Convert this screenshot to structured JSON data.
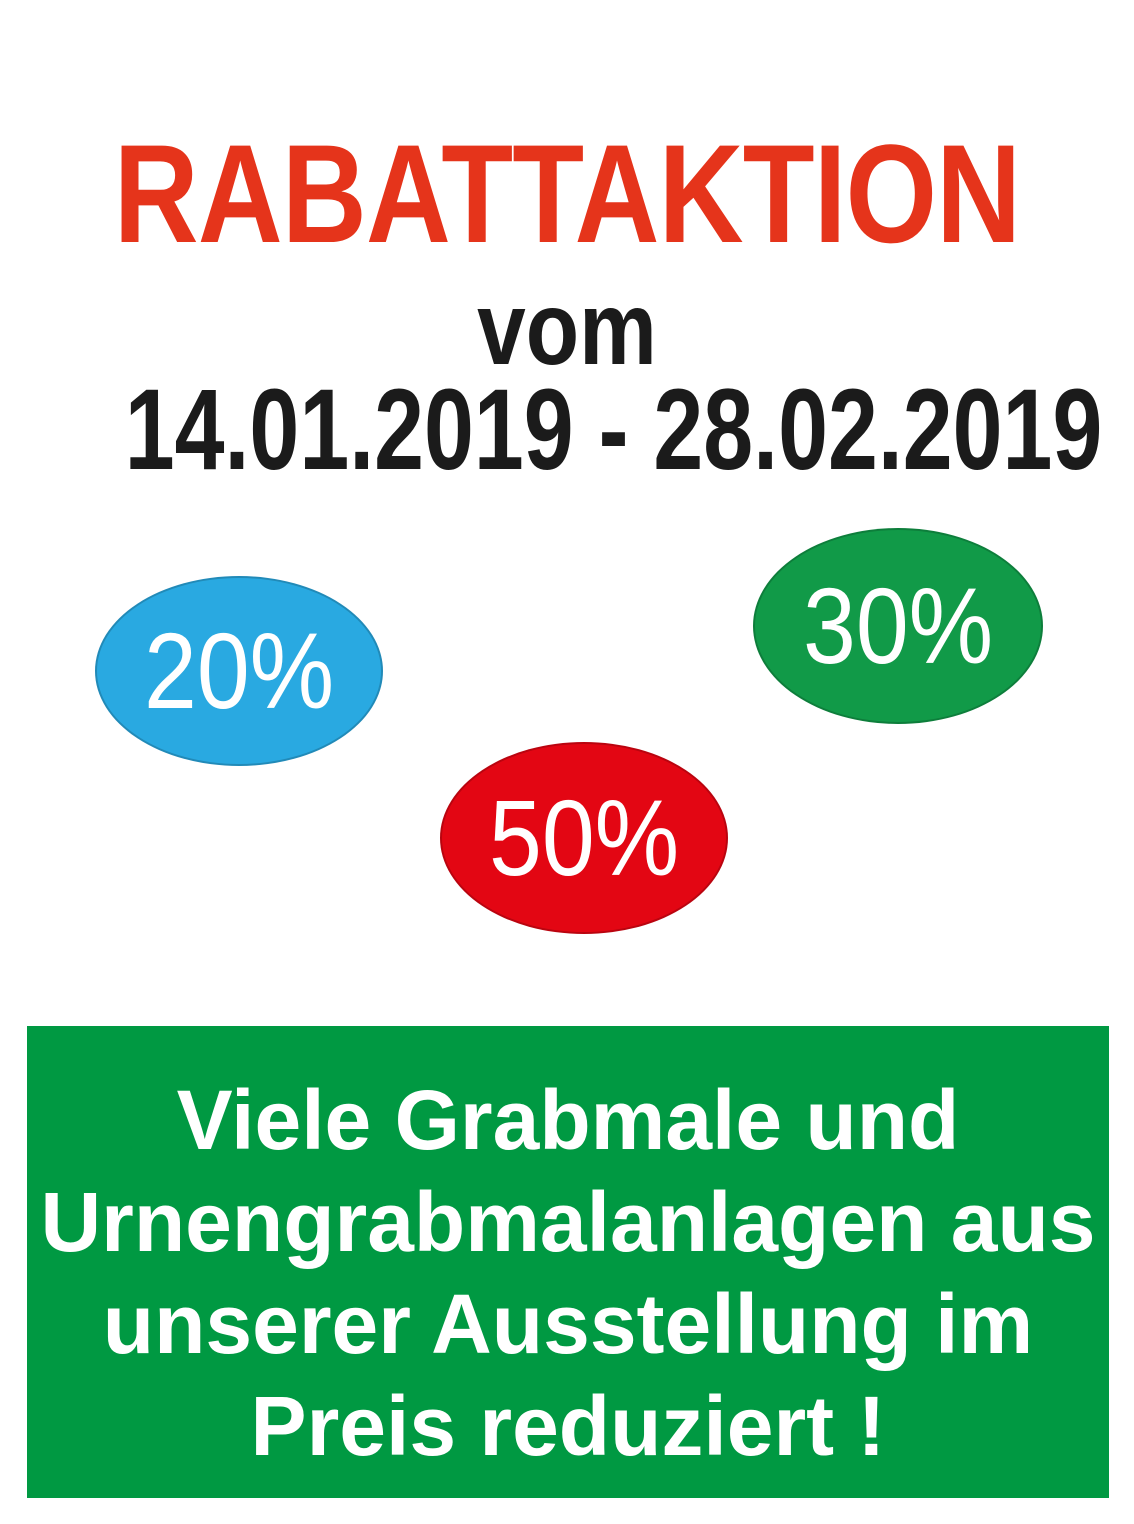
{
  "poster": {
    "background": "#FFFFFF",
    "title": {
      "text": "RABATTAKTION",
      "color": "#E5341B"
    },
    "subtitle": {
      "text": "vom",
      "color": "#1B1B1B"
    },
    "date_range": {
      "text": "14.01.2019 - 28.02.2019",
      "color": "#1B1B1B"
    },
    "badges": [
      {
        "label": "20%",
        "bg_color": "#29A9E1",
        "text_color": "#FFFFFF"
      },
      {
        "label": "30%",
        "bg_color": "#119A48",
        "text_color": "#FFFFFF"
      },
      {
        "label": "50%",
        "bg_color": "#E30613",
        "text_color": "#FFFFFF"
      }
    ],
    "banner": {
      "bg_color": "#009942",
      "text_color": "#FFFFFF",
      "lines": [
        "Viele Grabmale und",
        "Urnengrabmalanlagen aus",
        "unserer Ausstellung im",
        "Preis reduziert !"
      ]
    }
  }
}
